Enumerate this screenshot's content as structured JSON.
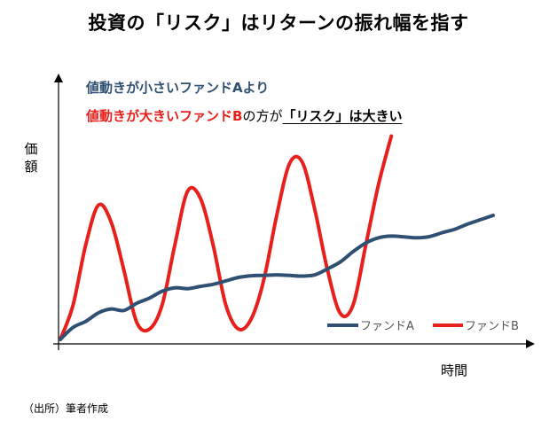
{
  "title": "投資の「リスク」はリターンの振れ幅を指す",
  "annotation": {
    "line1": "値動きが小さいファンドAより",
    "line2_red": "値動きが大きいファンドB",
    "line2_plain": "の方が",
    "line2_emph": "「リスク」は大きい"
  },
  "source": "（出所）筆者作成",
  "chart_data": {
    "type": "line",
    "xlabel": "時間",
    "ylabel": "価額",
    "grid": false,
    "legend_position": "bottom-right",
    "series": [
      {
        "name": "ファンドA",
        "color": "#2f5073",
        "points": [
          [
            0,
            0
          ],
          [
            2,
            7
          ],
          [
            4,
            10.5
          ],
          [
            6,
            15.5
          ],
          [
            8,
            17.7
          ],
          [
            10,
            16.8
          ],
          [
            12,
            21
          ],
          [
            14,
            24
          ],
          [
            16,
            28
          ],
          [
            18,
            30
          ],
          [
            20,
            29.5
          ],
          [
            22,
            30.8
          ],
          [
            24,
            32
          ],
          [
            26,
            34
          ],
          [
            28,
            36
          ],
          [
            30,
            37
          ],
          [
            32,
            37.2
          ],
          [
            34,
            37.5
          ],
          [
            36,
            37.2
          ],
          [
            38,
            36.8
          ],
          [
            40,
            37.5
          ],
          [
            42,
            41
          ],
          [
            44,
            45
          ],
          [
            46,
            51
          ],
          [
            48,
            56
          ],
          [
            50,
            59
          ],
          [
            52,
            60
          ],
          [
            54,
            59.5
          ],
          [
            56,
            59
          ],
          [
            58,
            59.7
          ],
          [
            60,
            62
          ],
          [
            62,
            64
          ],
          [
            64,
            67
          ],
          [
            66,
            69.5
          ],
          [
            68,
            72
          ]
        ],
        "role": "low-volatility"
      },
      {
        "name": "ファンドB",
        "color": "#e8201b",
        "points": [
          [
            0,
            0
          ],
          [
            2,
            20
          ],
          [
            4,
            55
          ],
          [
            6,
            78
          ],
          [
            8,
            68
          ],
          [
            10,
            40
          ],
          [
            12,
            10
          ],
          [
            14,
            6
          ],
          [
            16,
            20
          ],
          [
            18,
            55
          ],
          [
            20,
            86
          ],
          [
            22,
            82
          ],
          [
            24,
            55
          ],
          [
            26,
            20
          ],
          [
            28,
            6
          ],
          [
            30,
            12
          ],
          [
            32,
            35
          ],
          [
            34,
            72
          ],
          [
            36,
            102
          ],
          [
            38,
            103
          ],
          [
            40,
            75
          ],
          [
            42,
            40
          ],
          [
            44,
            15
          ],
          [
            46,
            20
          ],
          [
            48,
            55
          ],
          [
            50,
            90
          ],
          [
            52,
            118
          ]
        ],
        "role": "high-volatility"
      }
    ],
    "x_range": [
      0,
      68
    ],
    "y_range": [
      0,
      125
    ]
  }
}
